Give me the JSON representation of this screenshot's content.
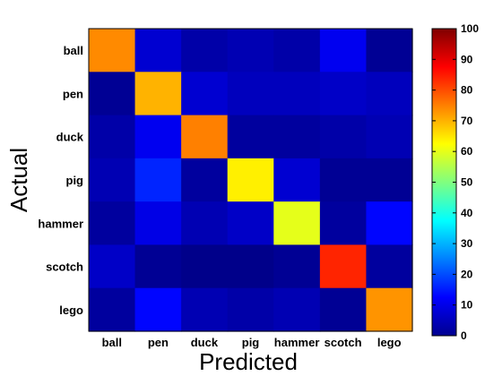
{
  "chart_data": {
    "type": "heatmap",
    "title": "",
    "xlabel": "Predicted",
    "ylabel": "Actual",
    "x_categories": [
      "ball",
      "pen",
      "duck",
      "pig",
      "hammer",
      "scotch",
      "lego"
    ],
    "y_categories": [
      "ball",
      "pen",
      "duck",
      "pig",
      "hammer",
      "scotch",
      "lego"
    ],
    "values": [
      [
        74,
        8,
        4,
        5,
        4,
        11,
        2
      ],
      [
        2,
        70,
        8,
        6,
        6,
        7,
        6
      ],
      [
        4,
        11,
        75,
        3,
        3,
        4,
        5
      ],
      [
        5,
        16,
        3,
        64,
        8,
        2,
        2
      ],
      [
        3,
        10,
        5,
        7,
        60,
        3,
        13
      ],
      [
        7,
        2,
        1,
        1,
        2,
        84,
        3
      ],
      [
        3,
        13,
        5,
        4,
        5,
        2,
        73
      ]
    ],
    "colorbar": {
      "min": 0,
      "max": 100,
      "ticks": [
        "0",
        "10",
        "20",
        "30",
        "40",
        "50",
        "60",
        "70",
        "80",
        "90",
        "100"
      ],
      "colormap": "jet"
    },
    "grid": false
  }
}
